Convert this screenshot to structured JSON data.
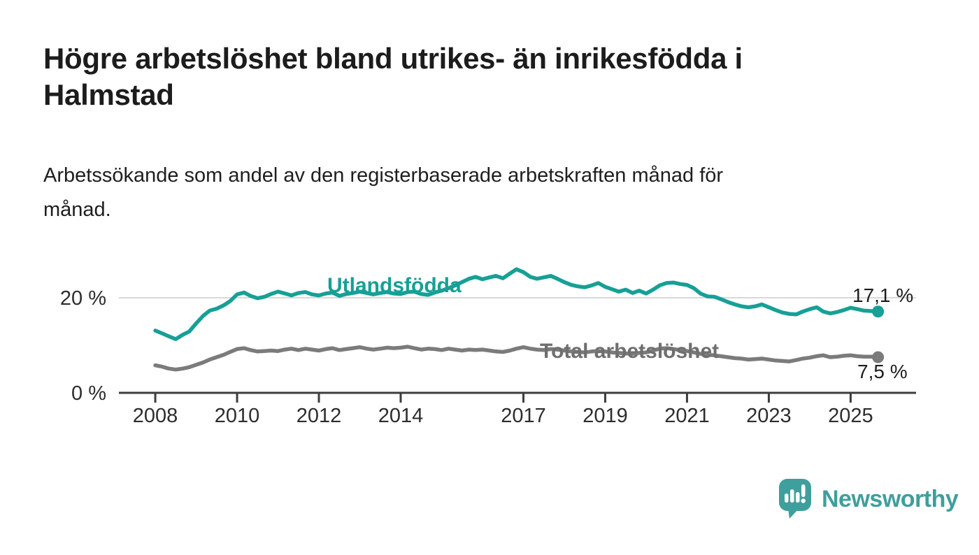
{
  "title": "Högre arbetslöshet bland utrikes- än inrikesfödda i\nHalmstad",
  "subtitle": "Arbetssökande som andel av den registerbaserade arbetskraften månad för\nmånad.",
  "footer": {
    "brand": "Newsworthy"
  },
  "icons": {
    "logo": "bar-chart-speech-bubble-icon"
  },
  "colors": {
    "teal": "#16a096",
    "gray_line": "#7b7b7b",
    "gray_label": "#6f6f6f",
    "grid": "#d9d9d9",
    "axis": "#3d3d3d",
    "tick_text": "#2d2d2d",
    "text": "#1c1c1c",
    "brand_teal": "#3f9f9c"
  },
  "chart_data": {
    "type": "line",
    "title": "Högre arbetslöshet bland utrikes- än inrikesfödda i Halmstad",
    "subtitle": "Arbetssökande som andel av den registerbaserade arbetskraften månad för månad.",
    "xlabel": "",
    "ylabel": "",
    "grid": "single horizontal gridline at 20 %",
    "legend_position": "inline labels on lines",
    "x_range": [
      2007.11,
      2026.6
    ],
    "y_range": [
      0,
      27
    ],
    "x_ticks": [
      {
        "year": 2008,
        "label": "2008"
      },
      {
        "year": 2010,
        "label": "2010"
      },
      {
        "year": 2012,
        "label": "2012"
      },
      {
        "year": 2014,
        "label": "2014"
      },
      {
        "year": 2017,
        "label": "2017"
      },
      {
        "year": 2019,
        "label": "2019"
      },
      {
        "year": 2021,
        "label": "2021"
      },
      {
        "year": 2023,
        "label": "2023"
      },
      {
        "year": 2025,
        "label": "2025"
      }
    ],
    "y_ticks": [
      {
        "value": 20,
        "label": "20 %"
      },
      {
        "value": 0,
        "label": "0 %"
      }
    ],
    "series": [
      {
        "name": "Utlandsfödda",
        "color": "#16a096",
        "end_label": "17,1 %",
        "end_value": 17.1,
        "points": [
          [
            2008.0,
            13.1
          ],
          [
            2008.17,
            12.5
          ],
          [
            2008.33,
            11.9
          ],
          [
            2008.5,
            11.3
          ],
          [
            2008.67,
            12.2
          ],
          [
            2008.83,
            12.9
          ],
          [
            2009.0,
            14.6
          ],
          [
            2009.17,
            16.2
          ],
          [
            2009.33,
            17.3
          ],
          [
            2009.5,
            17.7
          ],
          [
            2009.67,
            18.4
          ],
          [
            2009.83,
            19.3
          ],
          [
            2010.0,
            20.7
          ],
          [
            2010.17,
            21.1
          ],
          [
            2010.33,
            20.4
          ],
          [
            2010.5,
            19.9
          ],
          [
            2010.67,
            20.2
          ],
          [
            2010.83,
            20.8
          ],
          [
            2011.0,
            21.3
          ],
          [
            2011.17,
            20.9
          ],
          [
            2011.33,
            20.5
          ],
          [
            2011.5,
            21.0
          ],
          [
            2011.67,
            21.2
          ],
          [
            2011.83,
            20.7
          ],
          [
            2012.0,
            20.5
          ],
          [
            2012.17,
            20.9
          ],
          [
            2012.33,
            21.1
          ],
          [
            2012.5,
            20.4
          ],
          [
            2012.67,
            20.8
          ],
          [
            2012.83,
            21.0
          ],
          [
            2013.0,
            21.3
          ],
          [
            2013.17,
            21.0
          ],
          [
            2013.33,
            20.7
          ],
          [
            2013.5,
            21.0
          ],
          [
            2013.67,
            21.2
          ],
          [
            2013.83,
            20.9
          ],
          [
            2014.0,
            20.8
          ],
          [
            2014.17,
            21.2
          ],
          [
            2014.33,
            21.3
          ],
          [
            2014.5,
            20.8
          ],
          [
            2014.67,
            20.6
          ],
          [
            2014.83,
            21.1
          ],
          [
            2015.0,
            21.5
          ],
          [
            2015.17,
            22.0
          ],
          [
            2015.33,
            22.6
          ],
          [
            2015.5,
            23.3
          ],
          [
            2015.67,
            24.0
          ],
          [
            2015.83,
            24.4
          ],
          [
            2016.0,
            23.9
          ],
          [
            2016.17,
            24.3
          ],
          [
            2016.33,
            24.6
          ],
          [
            2016.5,
            24.1
          ],
          [
            2016.67,
            25.1
          ],
          [
            2016.83,
            26.0
          ],
          [
            2017.0,
            25.4
          ],
          [
            2017.17,
            24.4
          ],
          [
            2017.33,
            24.0
          ],
          [
            2017.5,
            24.3
          ],
          [
            2017.67,
            24.6
          ],
          [
            2017.83,
            24.0
          ],
          [
            2018.0,
            23.3
          ],
          [
            2018.17,
            22.7
          ],
          [
            2018.33,
            22.4
          ],
          [
            2018.5,
            22.2
          ],
          [
            2018.67,
            22.6
          ],
          [
            2018.83,
            23.1
          ],
          [
            2019.0,
            22.3
          ],
          [
            2019.17,
            21.8
          ],
          [
            2019.33,
            21.3
          ],
          [
            2019.5,
            21.7
          ],
          [
            2019.67,
            21.0
          ],
          [
            2019.83,
            21.5
          ],
          [
            2020.0,
            20.9
          ],
          [
            2020.17,
            21.7
          ],
          [
            2020.33,
            22.6
          ],
          [
            2020.5,
            23.1
          ],
          [
            2020.67,
            23.2
          ],
          [
            2020.83,
            22.9
          ],
          [
            2021.0,
            22.7
          ],
          [
            2021.17,
            22.0
          ],
          [
            2021.33,
            20.9
          ],
          [
            2021.5,
            20.3
          ],
          [
            2021.67,
            20.2
          ],
          [
            2021.83,
            19.7
          ],
          [
            2022.0,
            19.1
          ],
          [
            2022.17,
            18.6
          ],
          [
            2022.33,
            18.2
          ],
          [
            2022.5,
            18.0
          ],
          [
            2022.67,
            18.2
          ],
          [
            2022.83,
            18.6
          ],
          [
            2023.0,
            18.0
          ],
          [
            2023.17,
            17.4
          ],
          [
            2023.33,
            16.9
          ],
          [
            2023.5,
            16.6
          ],
          [
            2023.67,
            16.5
          ],
          [
            2023.83,
            17.1
          ],
          [
            2024.0,
            17.6
          ],
          [
            2024.17,
            18.0
          ],
          [
            2024.33,
            17.1
          ],
          [
            2024.5,
            16.7
          ],
          [
            2024.67,
            17.0
          ],
          [
            2024.83,
            17.4
          ],
          [
            2025.0,
            17.9
          ],
          [
            2025.17,
            17.6
          ],
          [
            2025.33,
            17.3
          ],
          [
            2025.5,
            17.2
          ],
          [
            2025.67,
            17.1
          ]
        ]
      },
      {
        "name": "Total arbetslöshet",
        "color": "#7b7b7b",
        "end_label": "7,5 %",
        "end_value": 7.5,
        "points": [
          [
            2008.0,
            5.8
          ],
          [
            2008.17,
            5.5
          ],
          [
            2008.33,
            5.1
          ],
          [
            2008.5,
            4.9
          ],
          [
            2008.67,
            5.1
          ],
          [
            2008.83,
            5.4
          ],
          [
            2009.0,
            5.9
          ],
          [
            2009.17,
            6.4
          ],
          [
            2009.33,
            7.0
          ],
          [
            2009.5,
            7.5
          ],
          [
            2009.67,
            8.0
          ],
          [
            2009.83,
            8.6
          ],
          [
            2010.0,
            9.2
          ],
          [
            2010.17,
            9.4
          ],
          [
            2010.33,
            9.0
          ],
          [
            2010.5,
            8.7
          ],
          [
            2010.67,
            8.8
          ],
          [
            2010.83,
            8.9
          ],
          [
            2011.0,
            8.8
          ],
          [
            2011.17,
            9.1
          ],
          [
            2011.33,
            9.3
          ],
          [
            2011.5,
            9.0
          ],
          [
            2011.67,
            9.3
          ],
          [
            2011.83,
            9.1
          ],
          [
            2012.0,
            8.9
          ],
          [
            2012.17,
            9.2
          ],
          [
            2012.33,
            9.4
          ],
          [
            2012.5,
            9.0
          ],
          [
            2012.67,
            9.2
          ],
          [
            2012.83,
            9.4
          ],
          [
            2013.0,
            9.6
          ],
          [
            2013.17,
            9.3
          ],
          [
            2013.33,
            9.1
          ],
          [
            2013.5,
            9.3
          ],
          [
            2013.67,
            9.5
          ],
          [
            2013.83,
            9.4
          ],
          [
            2014.0,
            9.5
          ],
          [
            2014.17,
            9.7
          ],
          [
            2014.33,
            9.4
          ],
          [
            2014.5,
            9.1
          ],
          [
            2014.67,
            9.3
          ],
          [
            2014.83,
            9.2
          ],
          [
            2015.0,
            9.0
          ],
          [
            2015.17,
            9.3
          ],
          [
            2015.33,
            9.1
          ],
          [
            2015.5,
            8.9
          ],
          [
            2015.67,
            9.1
          ],
          [
            2015.83,
            9.0
          ],
          [
            2016.0,
            9.1
          ],
          [
            2016.17,
            8.9
          ],
          [
            2016.33,
            8.7
          ],
          [
            2016.5,
            8.6
          ],
          [
            2016.67,
            8.9
          ],
          [
            2016.83,
            9.3
          ],
          [
            2017.0,
            9.6
          ],
          [
            2017.17,
            9.3
          ],
          [
            2017.33,
            9.1
          ],
          [
            2017.5,
            9.0
          ],
          [
            2017.67,
            9.2
          ],
          [
            2017.83,
            9.1
          ],
          [
            2018.0,
            8.9
          ],
          [
            2018.17,
            8.7
          ],
          [
            2018.33,
            8.6
          ],
          [
            2018.5,
            8.5
          ],
          [
            2018.67,
            8.7
          ],
          [
            2018.83,
            8.8
          ],
          [
            2019.0,
            8.7
          ],
          [
            2019.17,
            8.5
          ],
          [
            2019.33,
            8.4
          ],
          [
            2019.5,
            8.3
          ],
          [
            2019.67,
            8.2
          ],
          [
            2019.83,
            8.4
          ],
          [
            2020.0,
            8.5
          ],
          [
            2020.17,
            8.9
          ],
          [
            2020.33,
            9.3
          ],
          [
            2020.5,
            9.4
          ],
          [
            2020.67,
            9.2
          ],
          [
            2020.83,
            9.0
          ],
          [
            2021.0,
            8.8
          ],
          [
            2021.17,
            8.5
          ],
          [
            2021.33,
            8.2
          ],
          [
            2021.5,
            8.0
          ],
          [
            2021.67,
            7.9
          ],
          [
            2021.83,
            7.7
          ],
          [
            2022.0,
            7.5
          ],
          [
            2022.17,
            7.3
          ],
          [
            2022.33,
            7.2
          ],
          [
            2022.5,
            7.0
          ],
          [
            2022.67,
            7.1
          ],
          [
            2022.83,
            7.2
          ],
          [
            2023.0,
            7.0
          ],
          [
            2023.17,
            6.8
          ],
          [
            2023.33,
            6.7
          ],
          [
            2023.5,
            6.6
          ],
          [
            2023.67,
            6.9
          ],
          [
            2023.83,
            7.2
          ],
          [
            2024.0,
            7.4
          ],
          [
            2024.17,
            7.7
          ],
          [
            2024.33,
            7.9
          ],
          [
            2024.5,
            7.5
          ],
          [
            2024.67,
            7.6
          ],
          [
            2024.83,
            7.8
          ],
          [
            2025.0,
            7.9
          ],
          [
            2025.17,
            7.7
          ],
          [
            2025.33,
            7.6
          ],
          [
            2025.5,
            7.6
          ],
          [
            2025.67,
            7.5
          ]
        ]
      }
    ]
  }
}
